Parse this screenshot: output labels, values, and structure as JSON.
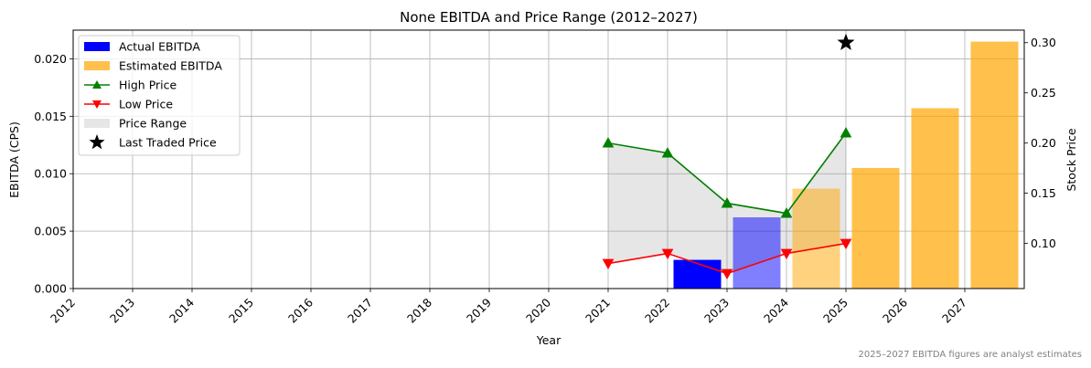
{
  "chart_data": {
    "type": "bar",
    "title": "None EBITDA and Price Range (2012–2027)",
    "xlabel": "Year",
    "ylabel": "EBITDA (CPS)",
    "y2label": "Stock Price",
    "categories": [
      "2012",
      "2013",
      "2014",
      "2015",
      "2016",
      "2017",
      "2018",
      "2019",
      "2020",
      "2021",
      "2022",
      "2023",
      "2024",
      "2025",
      "2026",
      "2027"
    ],
    "ylim": [
      0,
      0.0225
    ],
    "y2lim": [
      0.055,
      0.3125
    ],
    "yticks": [
      "0.000",
      "0.005",
      "0.010",
      "0.015",
      "0.020"
    ],
    "yticks_values": [
      0,
      0.005,
      0.01,
      0.015,
      0.02
    ],
    "y2ticks": [
      "0.10",
      "0.15",
      "0.20",
      "0.25",
      "0.30"
    ],
    "y2ticks_values": [
      0.1,
      0.15,
      0.2,
      0.25,
      0.3
    ],
    "grid": true,
    "legend_position": "top-left",
    "series": [
      {
        "name": "Actual EBITDA",
        "kind": "bar",
        "color": "#0000ff",
        "bars": [
          {
            "year": "2022",
            "value": 0.0025,
            "alpha": 1.0
          },
          {
            "year": "2023",
            "value": 0.0062,
            "alpha": 0.5
          },
          {
            "year": "2024",
            "value": 0.0087,
            "alpha": 0.0
          }
        ]
      },
      {
        "name": "Estimated EBITDA",
        "kind": "bar",
        "color": "#ffa500",
        "bars": [
          {
            "year": "2023",
            "value": 0.0062,
            "alpha": 0.0
          },
          {
            "year": "2024",
            "value": 0.0087,
            "alpha": 0.5
          },
          {
            "year": "2025",
            "value": 0.0105,
            "alpha": 0.7
          },
          {
            "year": "2026",
            "value": 0.0157,
            "alpha": 0.7
          },
          {
            "year": "2027",
            "value": 0.0215,
            "alpha": 0.7
          }
        ]
      },
      {
        "name": "High Price",
        "kind": "line",
        "axis": "right",
        "color": "#008000",
        "marker": "triangle-up",
        "x": [
          "2021",
          "2022",
          "2023",
          "2024",
          "2025"
        ],
        "values": [
          0.2,
          0.19,
          0.14,
          0.13,
          0.21
        ]
      },
      {
        "name": "Low Price",
        "kind": "line",
        "axis": "right",
        "color": "#ff0000",
        "marker": "triangle-down",
        "x": [
          "2021",
          "2022",
          "2023",
          "2024",
          "2025"
        ],
        "values": [
          0.08,
          0.09,
          0.07,
          0.09,
          0.1
        ]
      },
      {
        "name": "Price Range",
        "kind": "fill",
        "axis": "right",
        "color": "#808080"
      },
      {
        "name": "Last Traded Price",
        "kind": "marker",
        "axis": "right",
        "color": "#000000",
        "marker": "star",
        "x": "2025",
        "value": 0.3
      }
    ],
    "footnote": "2025–2027 EBITDA figures are analyst estimates"
  }
}
